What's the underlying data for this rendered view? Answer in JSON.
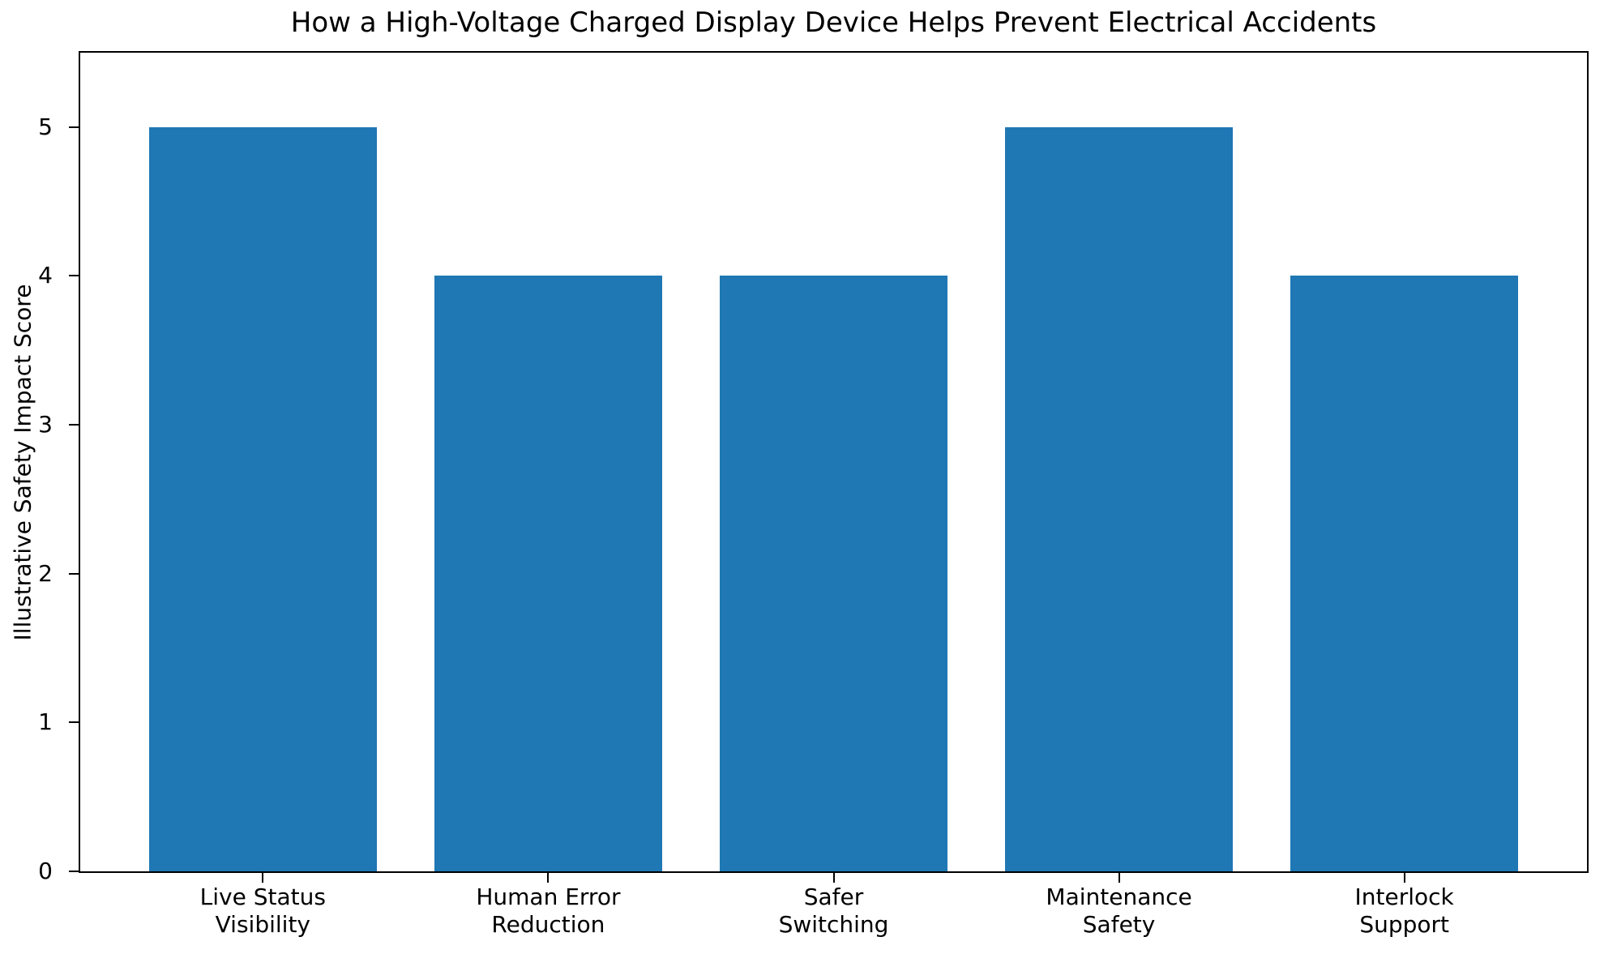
{
  "chart_data": {
    "type": "bar",
    "title": "How a High-Voltage Charged Display Device Helps Prevent Electrical Accidents",
    "xlabel": "",
    "ylabel": "Illustrative Safety Impact Score",
    "categories": [
      "Live Status\nVisibility",
      "Human Error\nReduction",
      "Safer\nSwitching",
      "Maintenance\nSafety",
      "Interlock\nSupport"
    ],
    "values": [
      5,
      4,
      4,
      5,
      4
    ],
    "yticks": [
      "0",
      "1",
      "2",
      "3",
      "4",
      "5"
    ],
    "ytick_values": [
      0,
      1,
      2,
      3,
      4,
      5
    ],
    "ylim": [
      0,
      5.5
    ],
    "xlim": [
      -0.64,
      4.64
    ],
    "bar_width_fraction": 0.8,
    "bar_color": "#1f77b4",
    "spine_color": "#000000",
    "grid": false,
    "legend": null
  }
}
